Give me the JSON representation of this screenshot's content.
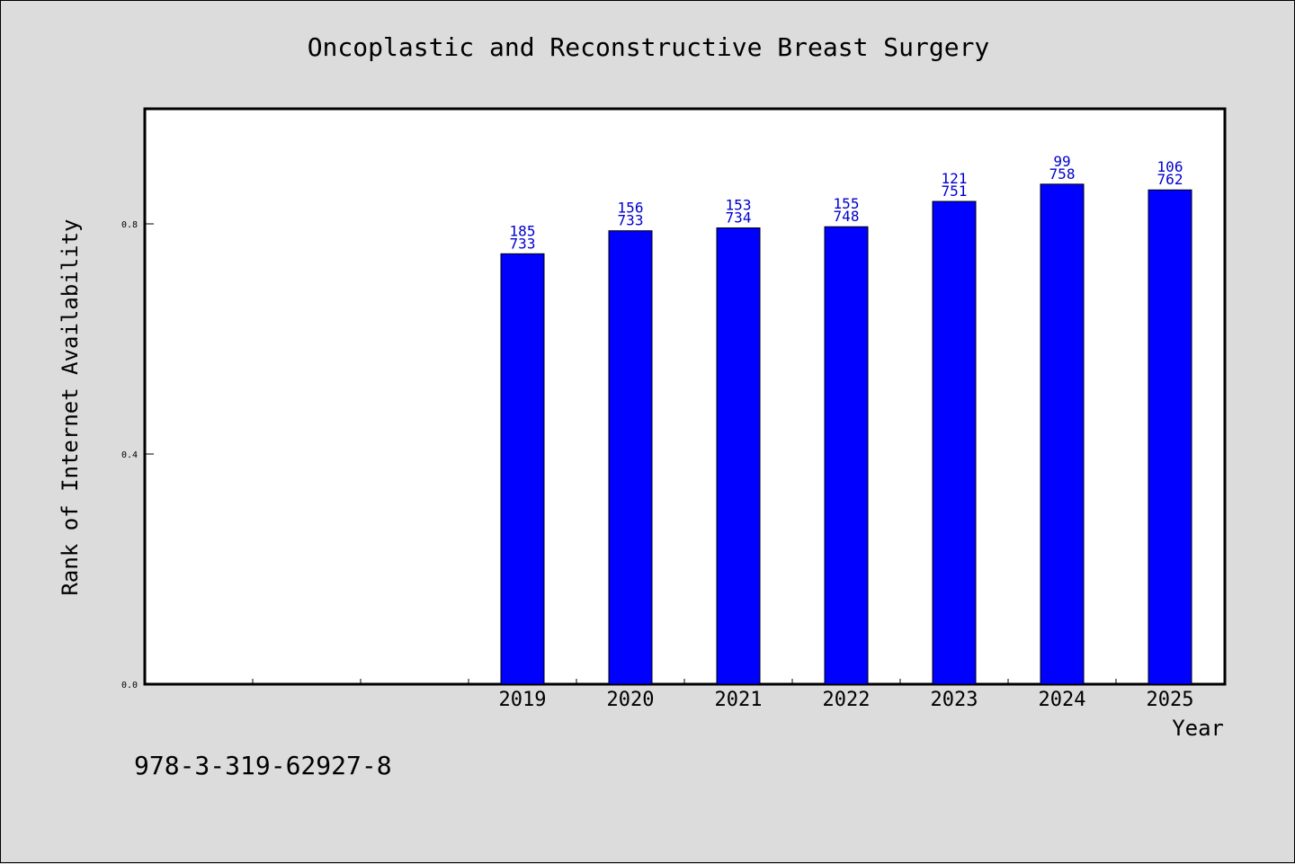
{
  "footer_code": "978-3-319-62927-8",
  "colors": {
    "bar": "#0000ff",
    "data_label": "#0000cc",
    "background": "#dcdcdc",
    "plot": "#ffffff"
  },
  "chart_data": {
    "type": "bar",
    "title": "Oncoplastic and Reconstructive Breast Surgery",
    "xlabel": "Year",
    "ylabel": "Rank of Internet Availability",
    "ylim": [
      0,
      1.0
    ],
    "yticks": [
      "0.0",
      "0.4",
      "0.8"
    ],
    "grid": false,
    "categories": [
      "",
      "",
      "",
      "2019",
      "2020",
      "2021",
      "2022",
      "2023",
      "2024",
      "2025"
    ],
    "values": [
      null,
      null,
      null,
      0.748,
      0.788,
      0.793,
      0.795,
      0.839,
      0.869,
      0.859
    ],
    "label_top": [
      "",
      "",
      "",
      "185",
      "156",
      "153",
      "155",
      "121",
      "99",
      "106"
    ],
    "label_bottom": [
      "",
      "",
      "",
      "733",
      "733",
      "734",
      "748",
      "751",
      "758",
      "762"
    ]
  }
}
